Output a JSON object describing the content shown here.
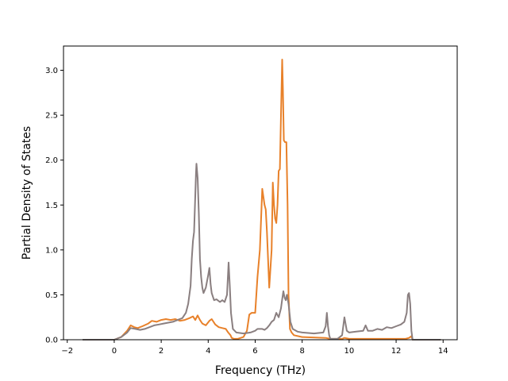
{
  "chart_data": {
    "type": "line",
    "title": "",
    "xlabel": "Frequency (THz)",
    "ylabel": "Partial Density of States",
    "xlim": [
      -2.16,
      14.6
    ],
    "ylim": [
      0,
      3.27
    ],
    "xticks": [
      -2,
      0,
      2,
      4,
      6,
      8,
      10,
      12,
      14
    ],
    "yticks": [
      0.0,
      0.5,
      1.0,
      1.5,
      2.0,
      2.5,
      3.0
    ],
    "xtick_labels": [
      "−2",
      "0",
      "2",
      "4",
      "6",
      "8",
      "10",
      "12",
      "14"
    ],
    "ytick_labels": [
      "0.0",
      "0.5",
      "1.0",
      "1.5",
      "2.0",
      "2.5",
      "3.0"
    ],
    "grid": false,
    "legend": "none",
    "series": [
      {
        "color": "#e8812a",
        "x": [
          -1.35,
          0.0,
          0.3,
          0.55,
          0.7,
          0.85,
          1.0,
          1.2,
          1.45,
          1.6,
          1.8,
          2.0,
          2.2,
          2.4,
          2.6,
          2.8,
          3.0,
          3.2,
          3.35,
          3.45,
          3.55,
          3.65,
          3.75,
          3.9,
          4.05,
          4.15,
          4.3,
          4.45,
          4.6,
          4.75,
          4.85,
          4.95,
          5.0,
          5.1,
          5.25,
          5.5,
          5.65,
          5.75,
          5.85,
          6.0,
          6.1,
          6.2,
          6.3,
          6.4,
          6.45,
          6.5,
          6.6,
          6.7,
          6.75,
          6.8,
          6.85,
          6.9,
          6.95,
          7.0,
          7.05,
          7.1,
          7.15,
          7.18,
          7.22,
          7.27,
          7.33,
          7.38,
          7.42,
          7.48,
          7.55,
          7.65,
          8.0,
          9.0,
          9.2,
          9.7,
          9.8,
          10.0,
          11.0,
          12.0,
          12.4,
          12.55,
          12.65,
          12.7,
          13.9
        ],
        "y": [
          0.0,
          0.0,
          0.03,
          0.1,
          0.16,
          0.14,
          0.13,
          0.15,
          0.18,
          0.21,
          0.2,
          0.22,
          0.23,
          0.22,
          0.23,
          0.21,
          0.22,
          0.24,
          0.26,
          0.22,
          0.27,
          0.22,
          0.18,
          0.16,
          0.21,
          0.23,
          0.17,
          0.14,
          0.13,
          0.12,
          0.08,
          0.05,
          0.02,
          0.01,
          0.01,
          0.03,
          0.1,
          0.28,
          0.3,
          0.3,
          0.7,
          1.0,
          1.68,
          1.5,
          1.45,
          1.2,
          0.58,
          1.0,
          1.75,
          1.5,
          1.35,
          1.3,
          1.5,
          1.88,
          1.9,
          2.5,
          3.12,
          2.8,
          2.22,
          2.2,
          2.2,
          1.5,
          0.5,
          0.12,
          0.08,
          0.05,
          0.03,
          0.02,
          0.01,
          0.01,
          0.02,
          0.01,
          0.01,
          0.01,
          0.01,
          0.02,
          0.04,
          0.0,
          0.0
        ]
      },
      {
        "color": "#8a7f80",
        "x": [
          -1.35,
          0.0,
          0.3,
          0.55,
          0.7,
          0.9,
          1.1,
          1.3,
          1.5,
          1.7,
          1.9,
          2.1,
          2.3,
          2.5,
          2.7,
          2.9,
          3.05,
          3.15,
          3.25,
          3.3,
          3.35,
          3.4,
          3.45,
          3.48,
          3.5,
          3.55,
          3.6,
          3.65,
          3.7,
          3.75,
          3.8,
          3.9,
          4.0,
          4.05,
          4.1,
          4.15,
          4.25,
          4.35,
          4.5,
          4.6,
          4.7,
          4.8,
          4.87,
          4.92,
          4.97,
          5.05,
          5.2,
          5.5,
          5.8,
          6.0,
          6.1,
          6.2,
          6.3,
          6.4,
          6.5,
          6.6,
          6.7,
          6.8,
          6.9,
          7.0,
          7.1,
          7.15,
          7.2,
          7.25,
          7.3,
          7.35,
          7.42,
          7.5,
          7.6,
          7.8,
          8.0,
          8.5,
          8.9,
          9.0,
          9.05,
          9.1,
          9.15,
          9.2,
          9.5,
          9.7,
          9.8,
          9.9,
          10.0,
          10.3,
          10.6,
          10.7,
          10.8,
          11.0,
          11.2,
          11.4,
          11.6,
          11.8,
          12.0,
          12.2,
          12.35,
          12.45,
          12.5,
          12.55,
          12.6,
          12.65,
          12.7,
          13.9
        ],
        "y": [
          0.0,
          0.0,
          0.03,
          0.08,
          0.13,
          0.12,
          0.11,
          0.12,
          0.14,
          0.16,
          0.17,
          0.18,
          0.19,
          0.2,
          0.22,
          0.24,
          0.3,
          0.4,
          0.6,
          0.9,
          1.1,
          1.2,
          1.6,
          1.85,
          1.96,
          1.8,
          1.4,
          0.9,
          0.7,
          0.58,
          0.52,
          0.58,
          0.72,
          0.8,
          0.62,
          0.52,
          0.44,
          0.45,
          0.42,
          0.44,
          0.42,
          0.5,
          0.86,
          0.6,
          0.3,
          0.12,
          0.08,
          0.07,
          0.08,
          0.1,
          0.12,
          0.12,
          0.12,
          0.11,
          0.13,
          0.16,
          0.2,
          0.22,
          0.3,
          0.25,
          0.35,
          0.45,
          0.54,
          0.47,
          0.44,
          0.5,
          0.4,
          0.2,
          0.12,
          0.09,
          0.08,
          0.07,
          0.08,
          0.15,
          0.3,
          0.15,
          0.05,
          0.01,
          0.01,
          0.05,
          0.25,
          0.1,
          0.08,
          0.09,
          0.1,
          0.16,
          0.1,
          0.1,
          0.12,
          0.11,
          0.14,
          0.13,
          0.15,
          0.17,
          0.2,
          0.3,
          0.5,
          0.52,
          0.4,
          0.1,
          0.0,
          0.0
        ]
      }
    ]
  }
}
